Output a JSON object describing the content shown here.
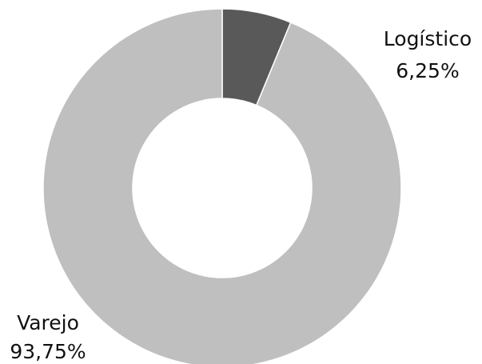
{
  "chart_data": {
    "type": "donut",
    "categories": [
      "Logístico",
      "Varejo"
    ],
    "values": [
      6.25,
      93.75
    ],
    "value_labels": [
      "6,25%",
      "93,75%"
    ],
    "colors": [
      "#595959",
      "#bfbfbf"
    ]
  }
}
